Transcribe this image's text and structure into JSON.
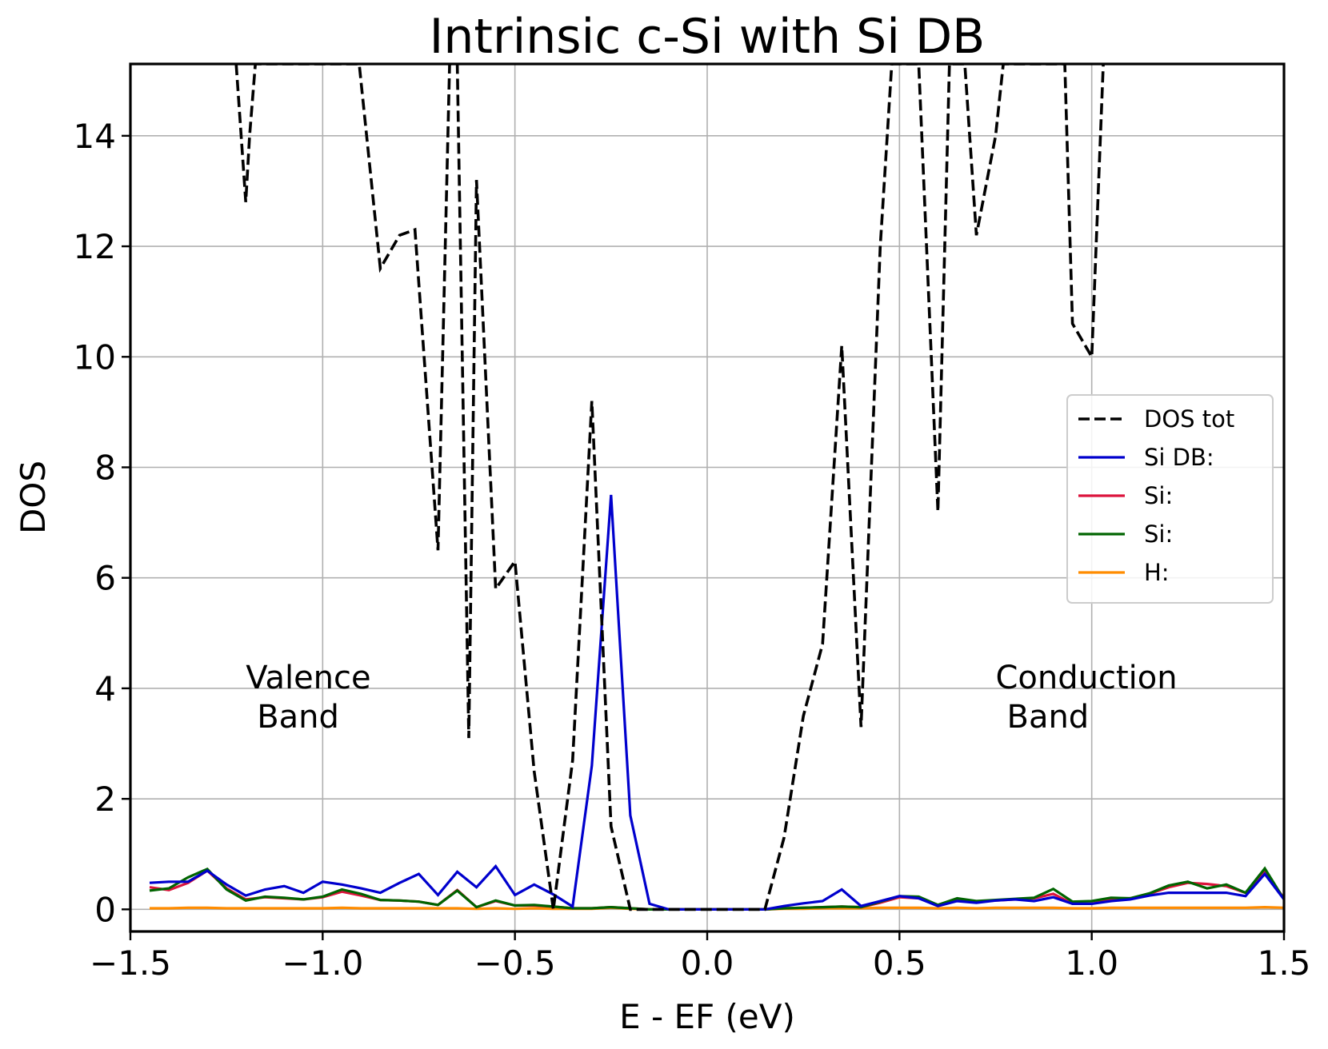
{
  "chart_data": {
    "type": "line",
    "title": "Intrinsic c-Si with Si DB",
    "xlabel": "E - EF (eV)",
    "ylabel": "DOS",
    "xlim": [
      -1.5,
      1.5
    ],
    "ylim": [
      -0.4,
      15.3
    ],
    "grid": true,
    "legend_position": "center-right",
    "xticks": [
      {
        "value": -1.5,
        "label": "−1.5"
      },
      {
        "value": -1.0,
        "label": "−1.0"
      },
      {
        "value": -0.5,
        "label": "−0.5"
      },
      {
        "value": 0.0,
        "label": "0.0"
      },
      {
        "value": 0.5,
        "label": "0.5"
      },
      {
        "value": 1.0,
        "label": "1.0"
      },
      {
        "value": 1.5,
        "label": "1.5"
      }
    ],
    "yticks": [
      {
        "value": 0,
        "label": "0"
      },
      {
        "value": 2,
        "label": "2"
      },
      {
        "value": 4,
        "label": "4"
      },
      {
        "value": 6,
        "label": "6"
      },
      {
        "value": 8,
        "label": "8"
      },
      {
        "value": 10,
        "label": "10"
      },
      {
        "value": 12,
        "label": "12"
      },
      {
        "value": 14,
        "label": "14"
      }
    ],
    "annotations": [
      {
        "lines": [
          "Valence",
          "Band"
        ],
        "x": -1.2,
        "y": 4.0
      },
      {
        "lines": [
          "Conduction",
          "Band"
        ],
        "x": 0.75,
        "y": 4.0
      }
    ],
    "series": [
      {
        "name": "DOS tot",
        "color": "#000000",
        "dashed": true,
        "x": [
          -1.225,
          -1.2,
          -1.19,
          -1.175,
          -0.905,
          -0.85,
          -0.8,
          -0.76,
          -0.7,
          -0.67,
          -0.65,
          -0.62,
          -0.6,
          -0.55,
          -0.5,
          -0.45,
          -0.4,
          -0.35,
          -0.3,
          -0.25,
          -0.2,
          -0.15,
          -0.1,
          -0.05,
          0.0,
          0.05,
          0.1,
          0.15,
          0.2,
          0.25,
          0.3,
          0.35,
          0.4,
          0.45,
          0.48,
          0.55,
          0.6,
          0.63,
          0.67,
          0.7,
          0.75,
          0.77,
          0.93,
          0.95,
          1.0,
          1.03
        ],
        "values": [
          15.3,
          12.8,
          14.0,
          15.3,
          15.3,
          11.6,
          12.2,
          12.3,
          6.5,
          15.3,
          15.3,
          3.1,
          13.2,
          5.8,
          6.3,
          2.5,
          0.0,
          2.7,
          9.2,
          1.5,
          0.0,
          0.0,
          0.0,
          0.0,
          0.0,
          0.0,
          0.0,
          0.0,
          1.3,
          3.5,
          4.8,
          10.2,
          3.3,
          12.0,
          15.3,
          15.3,
          7.2,
          15.3,
          15.3,
          12.2,
          14.0,
          15.3,
          15.3,
          10.6,
          10.0,
          15.3
        ]
      },
      {
        "name": "Si DB:",
        "color": "#0000cd",
        "dashed": false,
        "x": [
          -1.45,
          -1.4,
          -1.35,
          -1.3,
          -1.25,
          -1.2,
          -1.15,
          -1.1,
          -1.05,
          -1.0,
          -0.95,
          -0.9,
          -0.85,
          -0.8,
          -0.75,
          -0.7,
          -0.65,
          -0.6,
          -0.55,
          -0.5,
          -0.45,
          -0.4,
          -0.35,
          -0.3,
          -0.25,
          -0.2,
          -0.15,
          -0.1,
          -0.05,
          0.0,
          0.05,
          0.1,
          0.15,
          0.2,
          0.25,
          0.3,
          0.35,
          0.4,
          0.45,
          0.5,
          0.55,
          0.6,
          0.65,
          0.7,
          0.75,
          0.8,
          0.85,
          0.9,
          0.95,
          1.0,
          1.05,
          1.1,
          1.15,
          1.2,
          1.25,
          1.3,
          1.35,
          1.4,
          1.45,
          1.5
        ],
        "values": [
          0.48,
          0.5,
          0.5,
          0.7,
          0.45,
          0.25,
          0.36,
          0.42,
          0.3,
          0.5,
          0.45,
          0.38,
          0.3,
          0.48,
          0.64,
          0.26,
          0.68,
          0.4,
          0.78,
          0.26,
          0.45,
          0.27,
          0.05,
          2.6,
          7.5,
          1.7,
          0.1,
          0.0,
          0.0,
          0.0,
          0.0,
          0.0,
          0.0,
          0.06,
          0.11,
          0.15,
          0.36,
          0.06,
          0.15,
          0.24,
          0.2,
          0.06,
          0.15,
          0.12,
          0.16,
          0.18,
          0.15,
          0.22,
          0.1,
          0.1,
          0.15,
          0.18,
          0.25,
          0.3,
          0.3,
          0.3,
          0.3,
          0.24,
          0.64,
          0.18
        ]
      },
      {
        "name": "Si:",
        "color": "#dc143c",
        "dashed": false,
        "x": [
          -1.45,
          -1.4,
          -1.35,
          -1.3,
          -1.25,
          -1.2,
          -1.15,
          -1.1,
          -1.05,
          -1.0,
          -0.95,
          -0.9,
          -0.85,
          -0.8,
          -0.75,
          -0.7,
          -0.65,
          -0.6,
          -0.55,
          -0.5,
          -0.45,
          -0.4,
          -0.35,
          -0.3,
          -0.25,
          -0.2,
          -0.15,
          -0.1,
          -0.05,
          0.0,
          0.05,
          0.1,
          0.15,
          0.2,
          0.25,
          0.3,
          0.35,
          0.4,
          0.45,
          0.5,
          0.55,
          0.6,
          0.65,
          0.7,
          0.75,
          0.8,
          0.85,
          0.9,
          0.95,
          1.0,
          1.05,
          1.1,
          1.15,
          1.2,
          1.25,
          1.3,
          1.35,
          1.4,
          1.45,
          1.5
        ],
        "values": [
          0.4,
          0.35,
          0.48,
          0.7,
          0.38,
          0.18,
          0.22,
          0.2,
          0.18,
          0.22,
          0.32,
          0.25,
          0.17,
          0.16,
          0.14,
          0.08,
          0.35,
          0.04,
          0.15,
          0.07,
          0.07,
          0.05,
          0.02,
          0.02,
          0.04,
          0.02,
          0.0,
          0.0,
          0.0,
          0.0,
          0.0,
          0.0,
          0.0,
          0.02,
          0.03,
          0.04,
          0.05,
          0.04,
          0.12,
          0.22,
          0.2,
          0.08,
          0.18,
          0.14,
          0.16,
          0.18,
          0.2,
          0.28,
          0.1,
          0.1,
          0.18,
          0.2,
          0.28,
          0.4,
          0.48,
          0.46,
          0.42,
          0.3,
          0.68,
          0.2
        ]
      },
      {
        "name": "Si:",
        "color": "#006400",
        "dashed": false,
        "x": [
          -1.45,
          -1.4,
          -1.35,
          -1.3,
          -1.25,
          -1.2,
          -1.15,
          -1.1,
          -1.05,
          -1.0,
          -0.95,
          -0.9,
          -0.85,
          -0.8,
          -0.75,
          -0.7,
          -0.65,
          -0.6,
          -0.55,
          -0.5,
          -0.45,
          -0.4,
          -0.35,
          -0.3,
          -0.25,
          -0.2,
          -0.15,
          -0.1,
          -0.05,
          0.0,
          0.05,
          0.1,
          0.15,
          0.2,
          0.25,
          0.3,
          0.35,
          0.4,
          0.45,
          0.5,
          0.55,
          0.6,
          0.65,
          0.7,
          0.75,
          0.8,
          0.85,
          0.9,
          0.95,
          1.0,
          1.05,
          1.1,
          1.15,
          1.2,
          1.25,
          1.3,
          1.35,
          1.4,
          1.45,
          1.5
        ],
        "values": [
          0.34,
          0.38,
          0.58,
          0.73,
          0.36,
          0.16,
          0.23,
          0.21,
          0.18,
          0.23,
          0.36,
          0.28,
          0.17,
          0.16,
          0.14,
          0.08,
          0.34,
          0.04,
          0.16,
          0.07,
          0.08,
          0.05,
          0.02,
          0.02,
          0.04,
          0.02,
          0.0,
          0.0,
          0.0,
          0.0,
          0.0,
          0.0,
          0.0,
          0.02,
          0.03,
          0.04,
          0.05,
          0.04,
          0.14,
          0.24,
          0.23,
          0.08,
          0.2,
          0.15,
          0.17,
          0.19,
          0.21,
          0.37,
          0.14,
          0.15,
          0.21,
          0.2,
          0.29,
          0.43,
          0.5,
          0.38,
          0.45,
          0.3,
          0.74,
          0.18
        ]
      },
      {
        "name": "H:",
        "color": "#ff8c00",
        "dashed": false,
        "x": [
          -1.45,
          -1.4,
          -1.35,
          -1.3,
          -1.25,
          -1.2,
          -1.15,
          -1.1,
          -1.05,
          -1.0,
          -0.95,
          -0.9,
          -0.85,
          -0.8,
          -0.75,
          -0.7,
          -0.65,
          -0.6,
          -0.55,
          -0.5,
          -0.45,
          -0.4,
          -0.35,
          -0.3,
          -0.25,
          -0.2,
          -0.15,
          -0.1,
          -0.05,
          0.0,
          0.05,
          0.1,
          0.15,
          0.2,
          0.25,
          0.3,
          0.35,
          0.4,
          0.45,
          0.5,
          0.55,
          0.6,
          0.65,
          0.7,
          0.75,
          0.8,
          0.85,
          0.9,
          0.95,
          1.0,
          1.05,
          1.1,
          1.15,
          1.2,
          1.25,
          1.3,
          1.35,
          1.4,
          1.45,
          1.5
        ],
        "values": [
          0.02,
          0.02,
          0.03,
          0.03,
          0.02,
          0.02,
          0.02,
          0.02,
          0.02,
          0.02,
          0.03,
          0.02,
          0.02,
          0.02,
          0.02,
          0.02,
          0.02,
          0.01,
          0.02,
          0.01,
          0.02,
          0.01,
          0.01,
          0.01,
          0.03,
          0.01,
          0.0,
          0.0,
          0.0,
          0.0,
          0.0,
          0.0,
          0.0,
          0.01,
          0.01,
          0.02,
          0.02,
          0.02,
          0.03,
          0.03,
          0.03,
          0.02,
          0.03,
          0.02,
          0.03,
          0.03,
          0.03,
          0.03,
          0.02,
          0.02,
          0.03,
          0.03,
          0.03,
          0.03,
          0.03,
          0.03,
          0.03,
          0.03,
          0.04,
          0.03
        ]
      }
    ]
  }
}
